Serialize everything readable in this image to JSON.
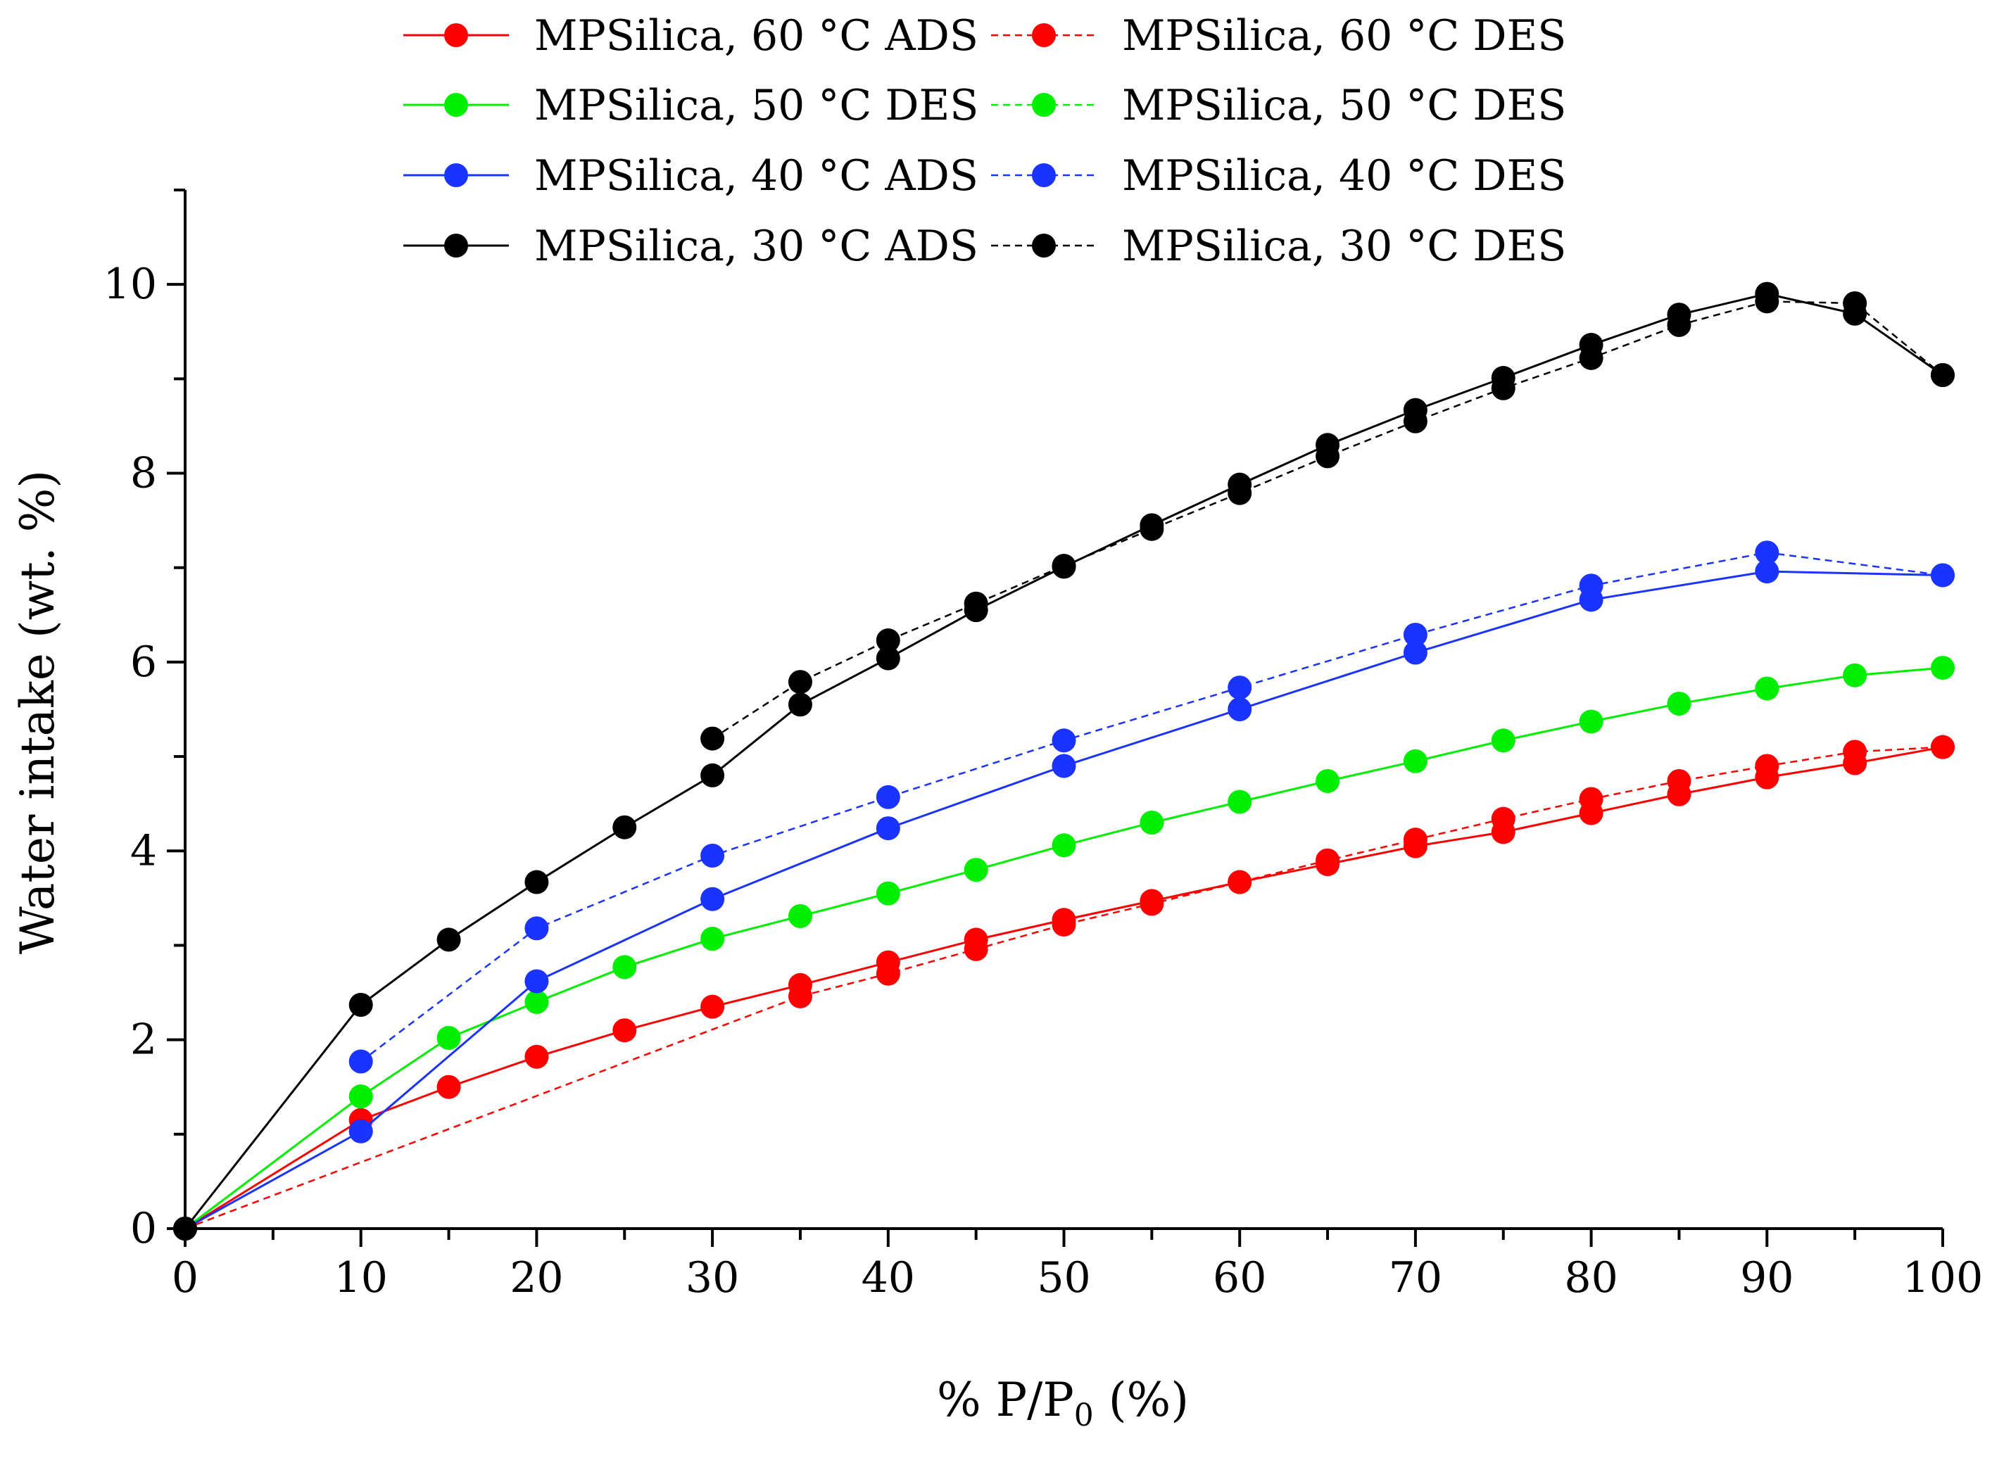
{
  "chart_data": {
    "type": "line",
    "title": "",
    "xlabel": "% P/P0 (%)",
    "xlabel_parts": {
      "pre": "% P/P",
      "sub": "0",
      "post": " (%)"
    },
    "ylabel": "Water intake (wt. %)",
    "xlim": [
      0,
      100
    ],
    "ylim": [
      0,
      11
    ],
    "xticks": [
      0,
      10,
      20,
      30,
      40,
      50,
      60,
      70,
      80,
      90,
      100
    ],
    "yticks": [
      0,
      2,
      4,
      6,
      8,
      10
    ],
    "xtick_labels": [
      "0",
      "10",
      "20",
      "30",
      "40",
      "50",
      "60",
      "70",
      "80",
      "90",
      "100"
    ],
    "ytick_labels": [
      "0",
      "2",
      "4",
      "6",
      "8",
      "10"
    ],
    "grid": false,
    "legend_position": "top",
    "series": [
      {
        "name": "MPSilica, 60 °C ADS",
        "color": "#ff0000",
        "dash": false,
        "x": [
          0,
          10,
          15,
          20,
          25,
          30,
          35,
          40,
          45,
          50,
          55,
          60,
          65,
          70,
          75,
          80,
          85,
          90,
          95,
          100
        ],
        "y": [
          0,
          1.15,
          1.5,
          1.82,
          2.1,
          2.35,
          2.58,
          2.82,
          3.06,
          3.27,
          3.47,
          3.67,
          3.86,
          4.05,
          4.2,
          4.4,
          4.6,
          4.78,
          4.93,
          5.1
        ]
      },
      {
        "name": "MPSilica, 60 °C DES",
        "color": "#ff0000",
        "dash": true,
        "x": [
          0,
          35,
          40,
          45,
          50,
          55,
          60,
          65,
          70,
          75,
          80,
          85,
          90,
          95,
          100
        ],
        "y": [
          0,
          2.46,
          2.7,
          2.96,
          3.22,
          3.44,
          3.67,
          3.9,
          4.12,
          4.34,
          4.55,
          4.74,
          4.9,
          5.05,
          5.1
        ]
      },
      {
        "name": "MPSilica, 50 °C DES",
        "color": "#00ee00",
        "dash": false,
        "x": [
          0,
          10,
          15,
          20,
          25,
          30,
          35,
          40,
          45,
          50,
          55,
          60,
          65,
          70,
          75,
          80,
          85,
          90,
          95,
          100
        ],
        "y": [
          0,
          1.4,
          2.02,
          2.4,
          2.77,
          3.07,
          3.31,
          3.55,
          3.8,
          4.06,
          4.3,
          4.52,
          4.74,
          4.95,
          5.17,
          5.37,
          5.56,
          5.72,
          5.86,
          5.94
        ]
      },
      {
        "name": "MPSilica, 50 °C DES",
        "color": "#00ee00",
        "dash": true,
        "x": [],
        "y": []
      },
      {
        "name": "MPSilica, 40 °C ADS",
        "color": "#1a33ff",
        "dash": false,
        "x": [
          0,
          10,
          20,
          30,
          40,
          50,
          60,
          70,
          80,
          90,
          100
        ],
        "y": [
          0,
          1.03,
          2.62,
          3.49,
          4.24,
          4.9,
          5.5,
          6.1,
          6.66,
          6.96,
          6.92
        ]
      },
      {
        "name": "MPSilica, 40 °C DES",
        "color": "#1a33ff",
        "dash": true,
        "x": [
          10,
          20,
          30,
          40,
          50,
          60,
          70,
          80,
          90,
          100
        ],
        "y": [
          1.77,
          3.18,
          3.95,
          4.57,
          5.17,
          5.73,
          6.29,
          6.81,
          7.16,
          6.92
        ]
      },
      {
        "name": "MPSilica, 30 °C ADS",
        "color": "#000000",
        "dash": false,
        "x": [
          0,
          10,
          15,
          20,
          25,
          30,
          35,
          40,
          45,
          50,
          55,
          60,
          65,
          70,
          75,
          80,
          85,
          90,
          95,
          100
        ],
        "y": [
          0,
          2.37,
          3.06,
          3.67,
          4.25,
          4.8,
          5.55,
          6.04,
          6.55,
          7.01,
          7.45,
          7.88,
          8.3,
          8.67,
          9.01,
          9.36,
          9.68,
          9.9,
          9.69,
          9.04
        ]
      },
      {
        "name": "MPSilica, 30 °C DES",
        "color": "#000000",
        "dash": true,
        "x": [
          30,
          35,
          40,
          45,
          50,
          55,
          60,
          65,
          70,
          75,
          80,
          85,
          90,
          95,
          100
        ],
        "y": [
          5.19,
          5.79,
          6.23,
          6.62,
          7.02,
          7.41,
          7.79,
          8.18,
          8.55,
          8.9,
          9.22,
          9.57,
          9.82,
          9.8,
          9.04
        ]
      }
    ]
  }
}
